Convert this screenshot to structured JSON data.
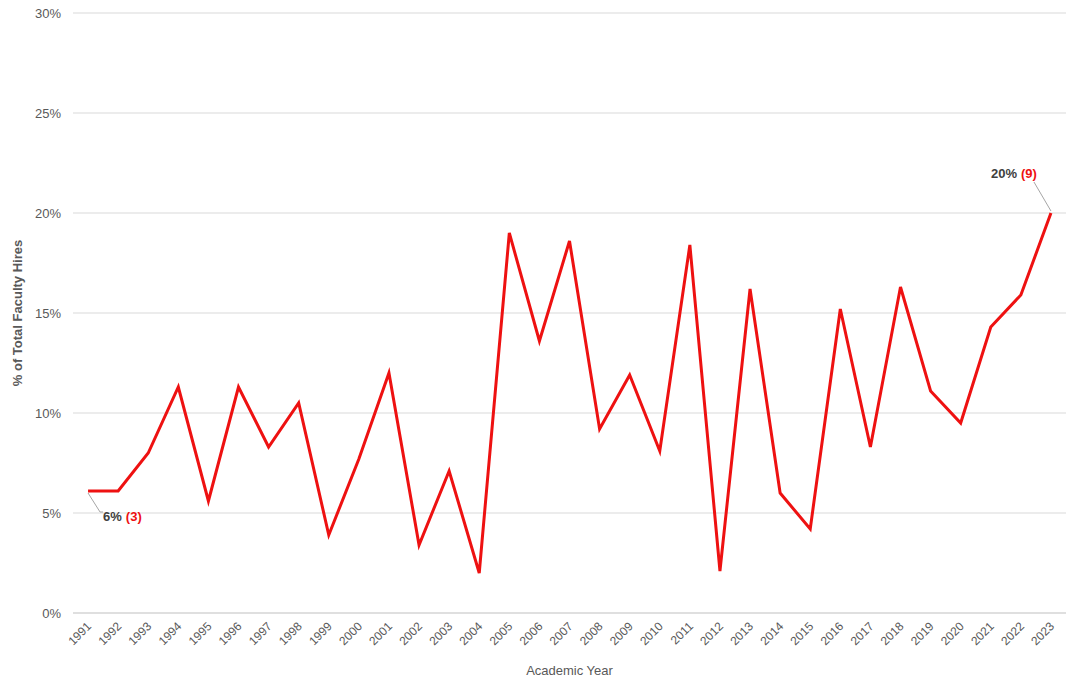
{
  "chart_data": {
    "type": "line",
    "x_label": "Academic Year",
    "y_label": "% of Total Faculty Hires",
    "categories": [
      "1991",
      "1992",
      "1993",
      "1994",
      "1995",
      "1996",
      "1997",
      "1998",
      "1999",
      "2000",
      "2001",
      "2002",
      "2003",
      "2004",
      "2005",
      "2006",
      "2007",
      "2008",
      "2009",
      "2010",
      "2011",
      "2012",
      "2013",
      "2014",
      "2015",
      "2016",
      "2017",
      "2018",
      "2019",
      "2020",
      "2021",
      "2022",
      "2023"
    ],
    "values": [
      6.1,
      6.1,
      8.0,
      11.3,
      5.6,
      11.3,
      8.3,
      10.5,
      3.9,
      7.7,
      12.0,
      3.4,
      7.1,
      2.0,
      19.0,
      13.6,
      18.6,
      9.2,
      11.9,
      8.1,
      18.4,
      2.1,
      16.2,
      6.0,
      4.2,
      15.2,
      8.3,
      16.3,
      11.1,
      9.5,
      14.3,
      15.9,
      20.0
    ],
    "color": "#ee1111",
    "ylim": [
      0,
      30
    ],
    "yticks": [
      {
        "value": 0,
        "label": "0%"
      },
      {
        "value": 5,
        "label": "5%"
      },
      {
        "value": 10,
        "label": "10%"
      },
      {
        "value": 15,
        "label": "15%"
      },
      {
        "value": 20,
        "label": "20%"
      },
      {
        "value": 25,
        "label": "25%"
      },
      {
        "value": 30,
        "label": "30%"
      }
    ],
    "grid": true,
    "annotations": [
      {
        "x": "1991",
        "label": "6%",
        "count": "(3)"
      },
      {
        "x": "2023",
        "label": "20%",
        "count": "(9)"
      }
    ]
  }
}
